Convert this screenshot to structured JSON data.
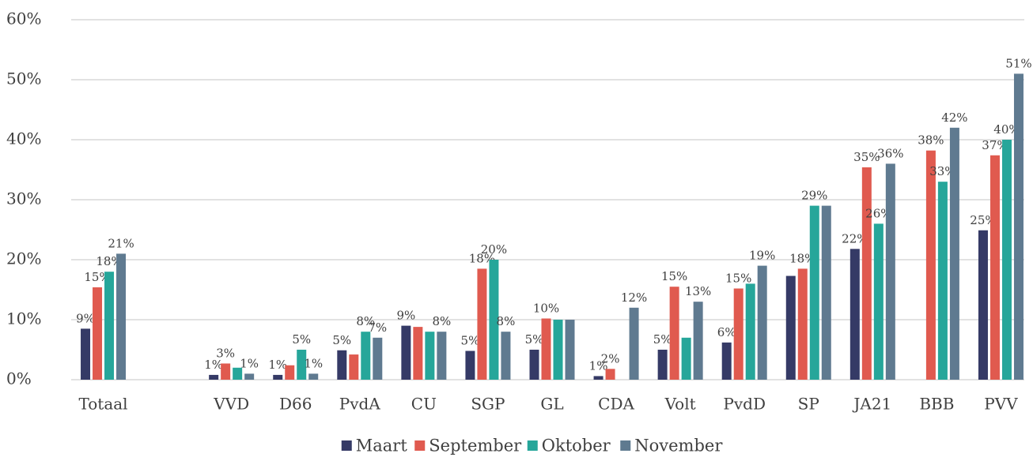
{
  "chart_data": {
    "type": "bar",
    "categories": [
      "Totaal",
      null,
      "VVD",
      "D66",
      "PvdA",
      "CU",
      "SGP",
      "GL",
      "CDA",
      "Volt",
      "PvdD",
      "SP",
      "JA21",
      "BBB",
      "PVV"
    ],
    "series": [
      {
        "name": "Maart",
        "color": "#353a66",
        "values": [
          8.5,
          null,
          0.8,
          0.8,
          4.9,
          9,
          4.8,
          5,
          0.6,
          5,
          6.2,
          17.3,
          21.8,
          null,
          24.9
        ],
        "value_labels": [
          "9%",
          null,
          "1%",
          "1%",
          "5%",
          "9%",
          "5%",
          "5%",
          "1%",
          "5%",
          "6%",
          null,
          "22%",
          null,
          "25%"
        ]
      },
      {
        "name": "September",
        "color": "#e05a4f",
        "values": [
          15.4,
          null,
          2.7,
          2.4,
          4.2,
          8.8,
          18.5,
          10.2,
          1.8,
          15.5,
          15.2,
          18.5,
          35.4,
          38.2,
          37.4
        ],
        "value_labels": [
          "15%",
          null,
          "3%",
          null,
          null,
          null,
          "18%",
          "10%",
          "2%",
          "15%",
          "15%",
          "18%",
          "35%",
          "38%",
          "37%"
        ]
      },
      {
        "name": "Oktober",
        "color": "#26a69a",
        "values": [
          18,
          null,
          2,
          5,
          8,
          8,
          20,
          10,
          null,
          7,
          16,
          29,
          26,
          33,
          40
        ],
        "value_labels": [
          "18%",
          null,
          null,
          "5%",
          "8%",
          null,
          "20%",
          null,
          null,
          null,
          null,
          "29%",
          "26%",
          "33%",
          "40%"
        ]
      },
      {
        "name": "November",
        "color": "#5f7a90",
        "values": [
          21,
          null,
          1,
          1,
          7,
          8,
          8,
          10,
          12,
          13,
          19,
          29,
          36,
          42,
          51
        ],
        "value_labels": [
          "21%",
          null,
          "1%",
          "1%",
          "7%",
          "8%",
          "8%",
          null,
          "12%",
          "13%",
          "19%",
          null,
          "36%",
          "42%",
          "51%"
        ]
      }
    ],
    "ylim": [
      0,
      60
    ],
    "yticks": [
      {
        "value": 0,
        "label": "0%"
      },
      {
        "value": 10,
        "label": "10%"
      },
      {
        "value": 20,
        "label": "20%"
      },
      {
        "value": 30,
        "label": "30%"
      },
      {
        "value": 40,
        "label": "40%"
      },
      {
        "value": 50,
        "label": "50%"
      },
      {
        "value": 60,
        "label": "60%"
      }
    ],
    "grid": true,
    "legend": "bottom"
  }
}
